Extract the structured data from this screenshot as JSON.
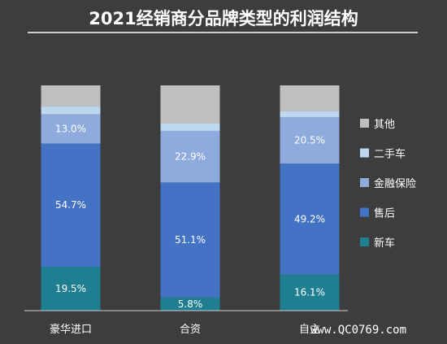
{
  "chart_data": {
    "type": "bar",
    "stacked": true,
    "normalized": true,
    "title": "2021经销商分品牌类型的利润结构",
    "categories": [
      "豪华进口",
      "合资",
      "自主"
    ],
    "series": [
      {
        "name": "新车",
        "color": "#1f7f91",
        "values": [
          19.5,
          5.8,
          16.1
        ],
        "labels": [
          "19.5%",
          "5.8%",
          "16.1%"
        ]
      },
      {
        "name": "售后",
        "color": "#4472c4",
        "values": [
          54.7,
          51.1,
          49.2
        ],
        "labels": [
          "54.7%",
          "51.1%",
          "49.2%"
        ]
      },
      {
        "name": "金融保险",
        "color": "#8faadc",
        "values": [
          13.0,
          22.9,
          20.5
        ],
        "labels": [
          "13.0%",
          "22.9%",
          "20.5%"
        ]
      },
      {
        "name": "二手车",
        "color": "#bdd7ee",
        "values": [
          3.4,
          3.4,
          2.8
        ],
        "labels": [
          "",
          "",
          ""
        ]
      },
      {
        "name": "其他",
        "color": "#bfbfbf",
        "values": [
          9.4,
          16.8,
          11.4
        ],
        "labels": [
          "",
          "",
          ""
        ]
      }
    ],
    "ylim": [
      0,
      100
    ],
    "legend_position": "right"
  },
  "watermark": "www.QC0769.com"
}
